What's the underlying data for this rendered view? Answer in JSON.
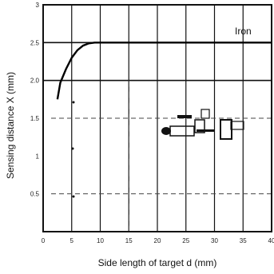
{
  "chart_data": {
    "type": "line",
    "title": "",
    "xlabel": "Side length of target d (mm)",
    "ylabel": "Sensing distance X (mm)",
    "xlim": [
      0,
      40
    ],
    "ylim": [
      0,
      3
    ],
    "x_ticks": [
      "0",
      "5",
      "10",
      "15",
      "20",
      "25",
      "30",
      "35",
      "40"
    ],
    "y_ticks": [
      "3",
      "2.5",
      "2.0",
      "1.5",
      "1",
      "0.5"
    ],
    "grid": true,
    "series": [
      {
        "name": "Iron",
        "x": [
          2.5,
          3,
          4,
          5,
          6,
          7,
          8,
          9,
          10,
          15,
          20,
          25,
          30,
          35,
          40
        ],
        "y": [
          1.75,
          1.97,
          2.15,
          2.3,
          2.4,
          2.46,
          2.49,
          2.5,
          2.5,
          2.5,
          2.5,
          2.5,
          2.5,
          2.5,
          2.5
        ]
      }
    ]
  }
}
